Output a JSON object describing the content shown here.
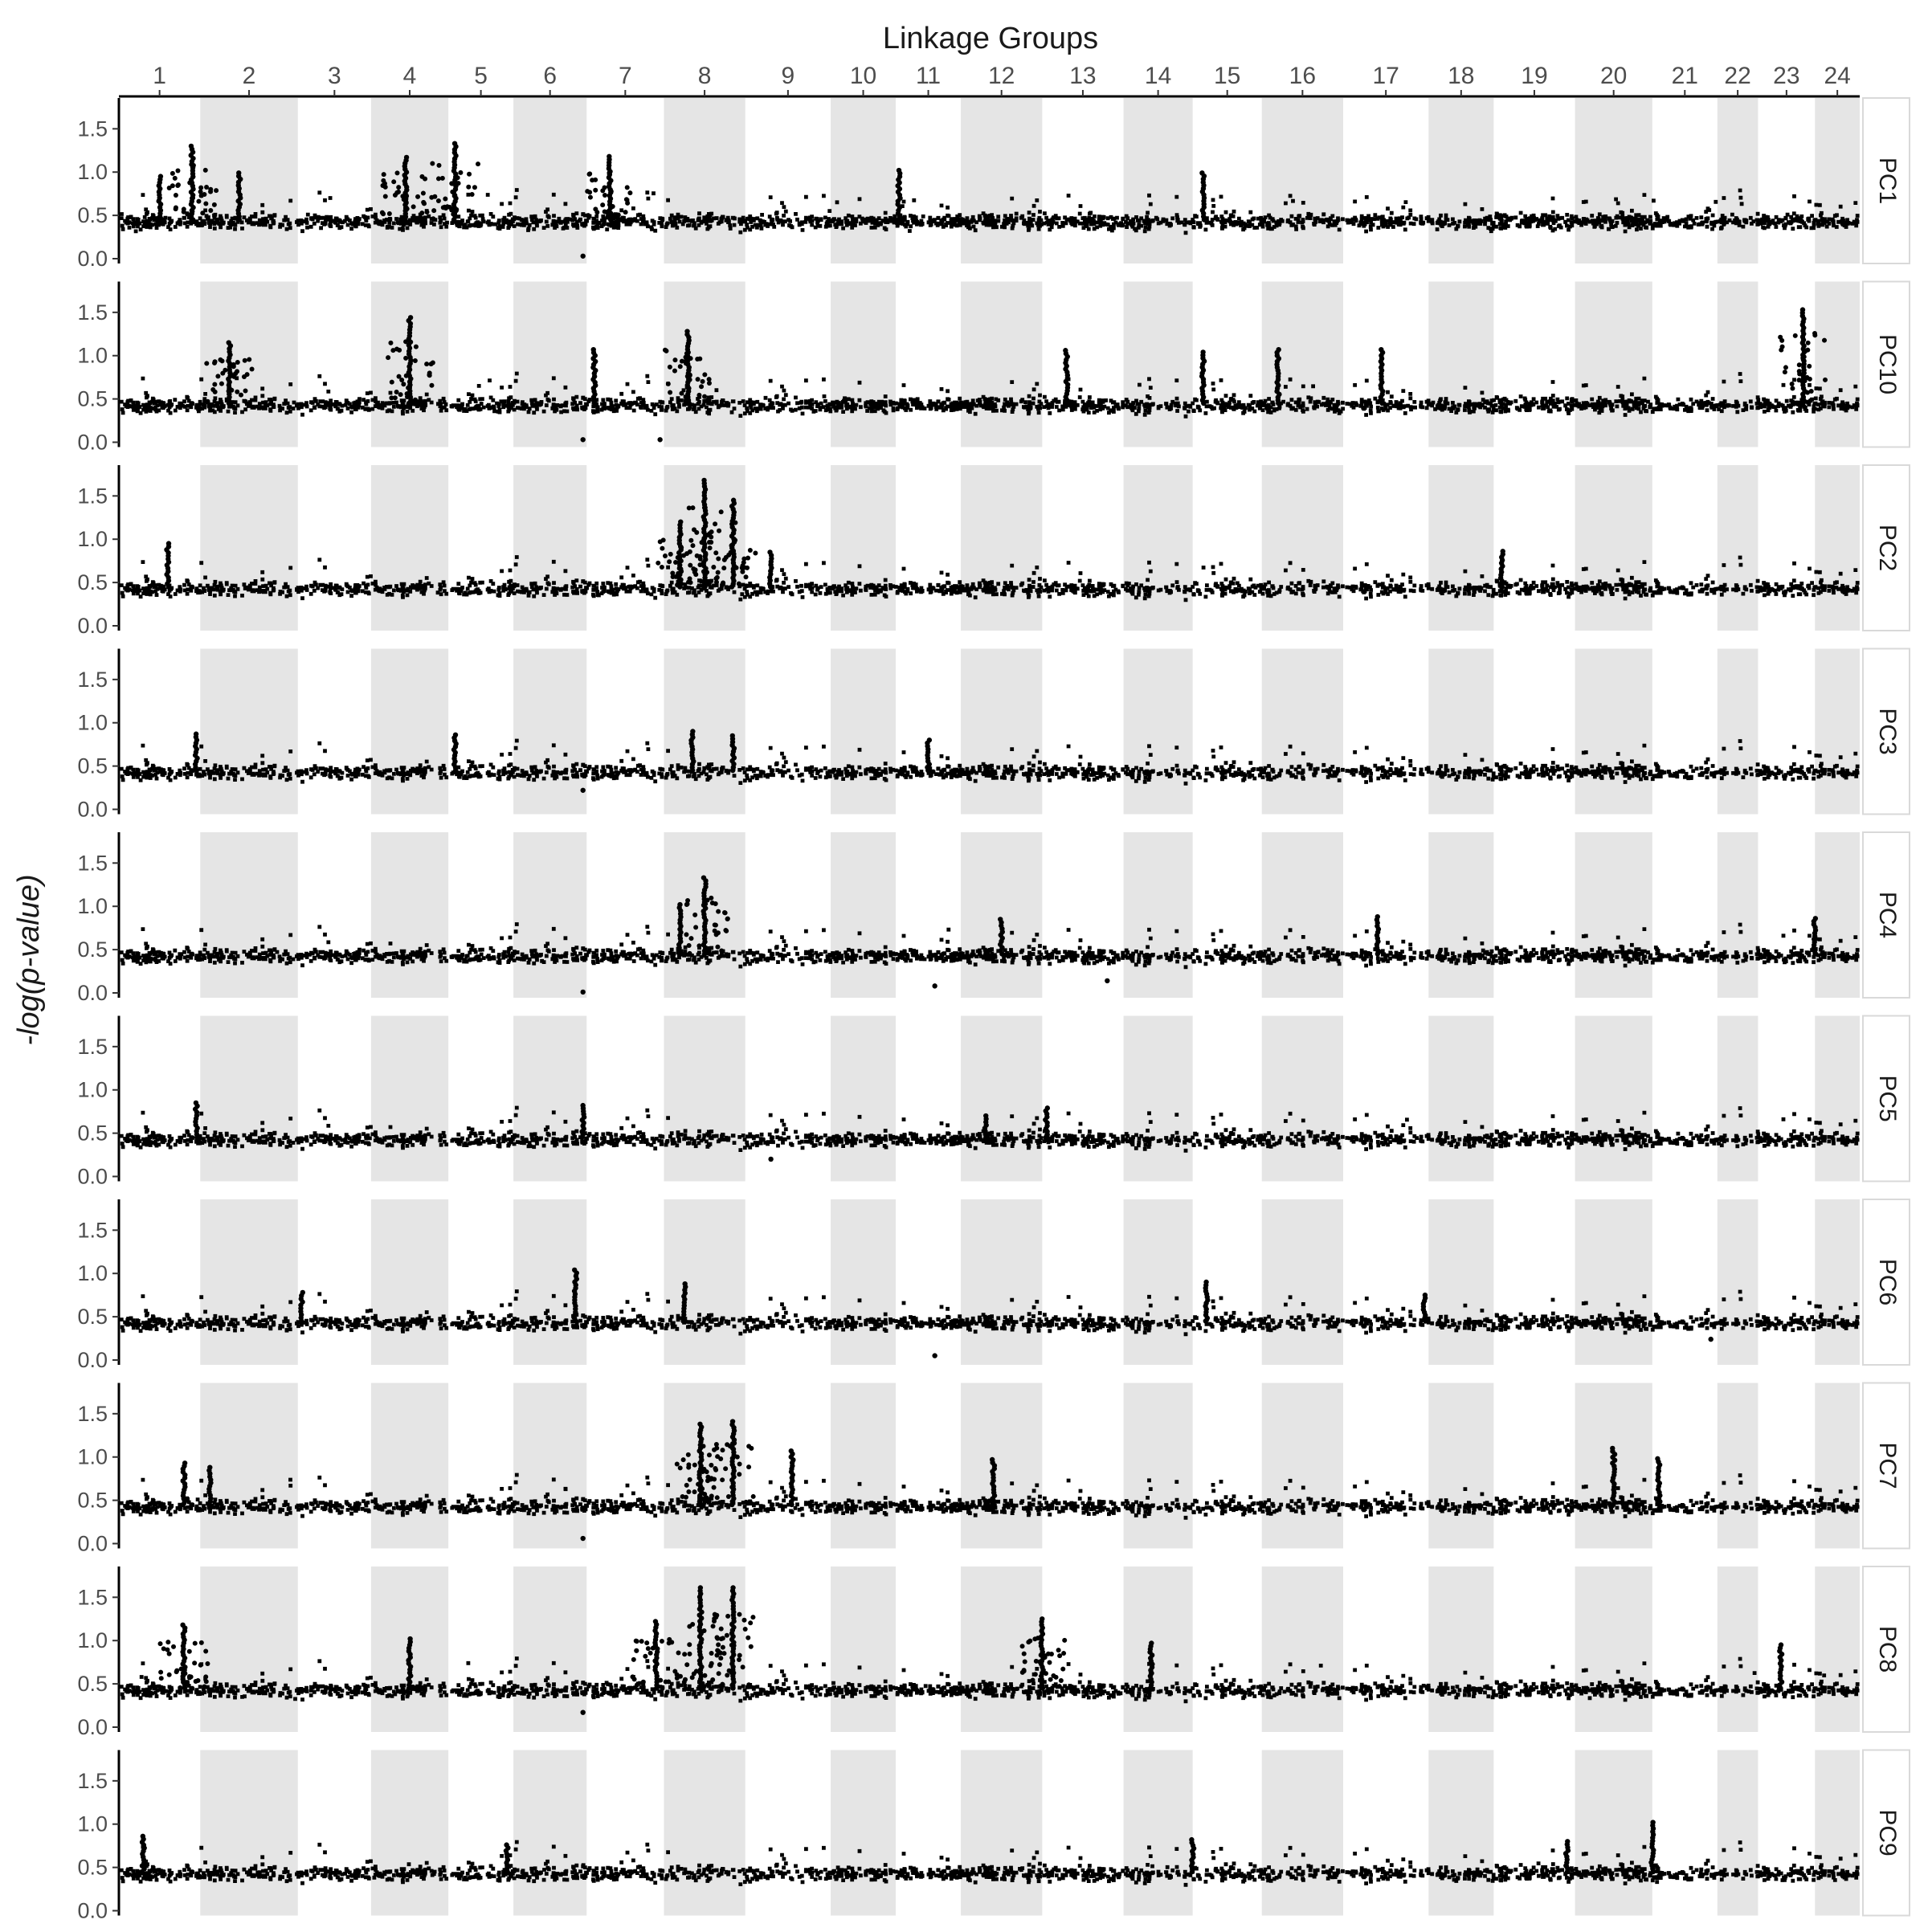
{
  "chart_data": {
    "type": "scatter",
    "title": "",
    "xlabel": "Linkage Groups",
    "ylabel": "-log(p-value)",
    "x_position": "top",
    "ylim": [
      0,
      1.8
    ],
    "y_ticks": [
      "0.0",
      "0.5",
      "1.0",
      "1.5"
    ],
    "y_tick_values": [
      0,
      0.5,
      1.0,
      1.5
    ],
    "linkage_groups": [
      "1",
      "2",
      "3",
      "4",
      "5",
      "6",
      "7",
      "8",
      "9",
      "10",
      "11",
      "12",
      "13",
      "14",
      "15",
      "16",
      "17",
      "18",
      "19",
      "20",
      "21",
      "22",
      "23",
      "24"
    ],
    "linkage_group_relative_lengths": [
      1.0,
      1.2,
      0.9,
      0.95,
      0.8,
      0.9,
      0.95,
      1.0,
      1.05,
      0.8,
      0.8,
      1.0,
      1.0,
      0.85,
      0.85,
      1.0,
      1.05,
      0.8,
      1.0,
      0.95,
      0.8,
      0.5,
      0.7,
      0.55
    ],
    "alternate_band_color": "#e5e5e5",
    "point_color": "#000000",
    "grid": false,
    "facet_strip_side": "right",
    "baseline_level": 0.45,
    "series": [
      {
        "name": "PC1",
        "peaks": [
          {
            "lg": "1",
            "pos": 0.9,
            "value": 1.3
          },
          {
            "lg": "4",
            "pos": 0.45,
            "value": 1.17
          },
          {
            "lg": "5",
            "pos": 0.1,
            "value": 1.33
          },
          {
            "lg": "7",
            "pos": 0.3,
            "value": 1.18
          },
          {
            "lg": "11",
            "pos": 0.05,
            "value": 1.02
          },
          {
            "lg": "15",
            "pos": 0.15,
            "value": 0.99
          },
          {
            "lg": "1",
            "pos": 0.5,
            "value": 0.95
          },
          {
            "lg": "2",
            "pos": 0.4,
            "value": 0.99
          },
          {
            "lg": "6",
            "pos": 0.95,
            "value": 0.03
          }
        ]
      },
      {
        "name": "PC10",
        "peaks": [
          {
            "lg": "4",
            "pos": 0.5,
            "value": 1.44
          },
          {
            "lg": "8",
            "pos": 0.3,
            "value": 1.28
          },
          {
            "lg": "23",
            "pos": 0.8,
            "value": 1.53
          },
          {
            "lg": "2",
            "pos": 0.3,
            "value": 1.15
          },
          {
            "lg": "7",
            "pos": 0.1,
            "value": 1.07
          },
          {
            "lg": "13",
            "pos": 0.3,
            "value": 1.06
          },
          {
            "lg": "15",
            "pos": 0.15,
            "value": 1.04
          },
          {
            "lg": "16",
            "pos": 0.2,
            "value": 1.07
          },
          {
            "lg": "17",
            "pos": 0.45,
            "value": 1.07
          },
          {
            "lg": "6",
            "pos": 0.95,
            "value": 0.03
          },
          {
            "lg": "7",
            "pos": 0.95,
            "value": 0.03
          }
        ]
      },
      {
        "name": "PC2",
        "peaks": [
          {
            "lg": "8",
            "pos": 0.5,
            "value": 1.68
          },
          {
            "lg": "8",
            "pos": 0.85,
            "value": 1.45
          },
          {
            "lg": "8",
            "pos": 0.2,
            "value": 1.2
          },
          {
            "lg": "1",
            "pos": 0.6,
            "value": 0.95
          },
          {
            "lg": "9",
            "pos": 0.3,
            "value": 0.85
          },
          {
            "lg": "19",
            "pos": 0.1,
            "value": 0.86
          }
        ]
      },
      {
        "name": "PC3",
        "peaks": [
          {
            "lg": "1",
            "pos": 0.95,
            "value": 0.87
          },
          {
            "lg": "5",
            "pos": 0.1,
            "value": 0.86
          },
          {
            "lg": "8",
            "pos": 0.35,
            "value": 0.9
          },
          {
            "lg": "8",
            "pos": 0.85,
            "value": 0.85
          },
          {
            "lg": "11",
            "pos": 0.5,
            "value": 0.8
          },
          {
            "lg": "6",
            "pos": 0.95,
            "value": 0.22
          }
        ]
      },
      {
        "name": "PC4",
        "peaks": [
          {
            "lg": "8",
            "pos": 0.5,
            "value": 1.33
          },
          {
            "lg": "8",
            "pos": 0.2,
            "value": 1.02
          },
          {
            "lg": "17",
            "pos": 0.4,
            "value": 0.88
          },
          {
            "lg": "12",
            "pos": 0.5,
            "value": 0.85
          },
          {
            "lg": "24",
            "pos": 0.0,
            "value": 0.86
          },
          {
            "lg": "6",
            "pos": 0.95,
            "value": 0.01
          },
          {
            "lg": "11",
            "pos": 0.6,
            "value": 0.08
          },
          {
            "lg": "13",
            "pos": 0.8,
            "value": 0.14
          }
        ]
      },
      {
        "name": "PC5",
        "peaks": [
          {
            "lg": "1",
            "pos": 0.95,
            "value": 0.85
          },
          {
            "lg": "6",
            "pos": 0.95,
            "value": 0.82
          },
          {
            "lg": "13",
            "pos": 0.05,
            "value": 0.79
          },
          {
            "lg": "12",
            "pos": 0.3,
            "value": 0.7
          },
          {
            "lg": "9",
            "pos": 0.3,
            "value": 0.2
          }
        ]
      },
      {
        "name": "PC6",
        "peaks": [
          {
            "lg": "6",
            "pos": 0.85,
            "value": 1.04
          },
          {
            "lg": "8",
            "pos": 0.25,
            "value": 0.88
          },
          {
            "lg": "3",
            "pos": 0.05,
            "value": 0.78
          },
          {
            "lg": "15",
            "pos": 0.2,
            "value": 0.9
          },
          {
            "lg": "17",
            "pos": 0.95,
            "value": 0.75
          },
          {
            "lg": "11",
            "pos": 0.6,
            "value": 0.05
          },
          {
            "lg": "21",
            "pos": 0.9,
            "value": 0.24
          }
        ]
      },
      {
        "name": "PC7",
        "peaks": [
          {
            "lg": "8",
            "pos": 0.45,
            "value": 1.38
          },
          {
            "lg": "8",
            "pos": 0.85,
            "value": 1.41
          },
          {
            "lg": "9",
            "pos": 0.55,
            "value": 1.07
          },
          {
            "lg": "20",
            "pos": 0.5,
            "value": 1.1
          },
          {
            "lg": "21",
            "pos": 0.1,
            "value": 0.98
          },
          {
            "lg": "12",
            "pos": 0.4,
            "value": 0.97
          },
          {
            "lg": "1",
            "pos": 0.8,
            "value": 0.93
          },
          {
            "lg": "2",
            "pos": 0.1,
            "value": 0.88
          },
          {
            "lg": "6",
            "pos": 0.95,
            "value": 0.06
          }
        ]
      },
      {
        "name": "PC8",
        "peaks": [
          {
            "lg": "8",
            "pos": 0.45,
            "value": 1.61
          },
          {
            "lg": "8",
            "pos": 0.85,
            "value": 1.61
          },
          {
            "lg": "13",
            "pos": 0.0,
            "value": 1.25
          },
          {
            "lg": "7",
            "pos": 0.9,
            "value": 1.22
          },
          {
            "lg": "1",
            "pos": 0.8,
            "value": 1.18
          },
          {
            "lg": "4",
            "pos": 0.5,
            "value": 1.02
          },
          {
            "lg": "23",
            "pos": 0.4,
            "value": 0.95
          },
          {
            "lg": "14",
            "pos": 0.4,
            "value": 0.97
          },
          {
            "lg": "6",
            "pos": 0.95,
            "value": 0.17
          }
        ]
      },
      {
        "name": "PC9",
        "peaks": [
          {
            "lg": "21",
            "pos": 0.0,
            "value": 1.02
          },
          {
            "lg": "1",
            "pos": 0.3,
            "value": 0.86
          },
          {
            "lg": "19",
            "pos": 0.9,
            "value": 0.8
          },
          {
            "lg": "15",
            "pos": 0.0,
            "value": 0.82
          },
          {
            "lg": "5",
            "pos": 0.9,
            "value": 0.76
          }
        ]
      }
    ]
  }
}
